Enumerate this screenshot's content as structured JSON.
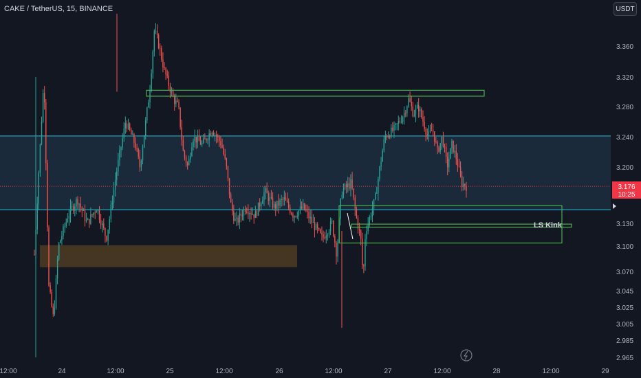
{
  "header": {
    "symbol_title": "CAKE / TetherUS, 15, BINANCE",
    "currency_button": "USDT"
  },
  "price_badge": {
    "price": "3.176",
    "countdown": "10:25"
  },
  "annotation_label": "LS Kink",
  "colors": {
    "background": "#131722",
    "up": "#26a69a",
    "down": "#ef5350",
    "zone_fill": "#1b2a3a",
    "zone_line": "#26c6da",
    "green_box": "#4caf50",
    "orange_zone": "#4a3a24",
    "price_badge": "#f23645"
  },
  "chart_data": {
    "type": "candlestick",
    "title": "CAKE / TetherUS, 15, BINANCE",
    "y_ticks": [
      "3.360",
      "3.320",
      "3.280",
      "3.240",
      "3.200",
      "3.130",
      "3.100",
      "3.070",
      "3.045",
      "3.025",
      "3.005",
      "2.985",
      "2.965"
    ],
    "x_ticks": [
      "12:00",
      "24",
      "12:00",
      "25",
      "12:00",
      "26",
      "12:00",
      "27",
      "12:00",
      "28",
      "12:00",
      "29"
    ],
    "ylim": [
      2.96,
      3.4
    ],
    "last_price": 3.176,
    "horizontal_lines": [
      3.241,
      3.147
    ],
    "zones": [
      {
        "kind": "range-channel",
        "top": 3.241,
        "bottom": 3.147
      },
      {
        "kind": "green-box",
        "top": 3.302,
        "bottom": 3.294
      },
      {
        "kind": "green-box",
        "top": 3.152,
        "bottom": 3.104
      },
      {
        "kind": "green-box",
        "top": 3.129,
        "bottom": 3.125,
        "label": "LS Kink"
      },
      {
        "kind": "orange-zone",
        "top": 3.101,
        "bottom": 3.075
      }
    ],
    "price_path": [
      [
        0,
        3.09
      ],
      [
        4,
        3.32
      ],
      [
        6,
        3.05
      ],
      [
        8,
        3.01
      ],
      [
        10,
        3.1
      ],
      [
        14,
        3.14
      ],
      [
        18,
        3.16
      ],
      [
        22,
        3.13
      ],
      [
        26,
        3.15
      ],
      [
        30,
        3.11
      ],
      [
        34,
        3.19
      ],
      [
        38,
        3.26
      ],
      [
        42,
        3.23
      ],
      [
        44,
        3.2
      ],
      [
        48,
        3.3
      ],
      [
        50,
        3.38
      ],
      [
        52,
        3.36
      ],
      [
        54,
        3.33
      ],
      [
        56,
        3.31
      ],
      [
        58,
        3.29
      ],
      [
        60,
        3.28
      ],
      [
        62,
        3.22
      ],
      [
        64,
        3.2
      ],
      [
        66,
        3.24
      ],
      [
        70,
        3.23
      ],
      [
        74,
        3.25
      ],
      [
        78,
        3.23
      ],
      [
        80,
        3.2
      ],
      [
        82,
        3.15
      ],
      [
        84,
        3.13
      ],
      [
        88,
        3.15
      ],
      [
        92,
        3.14
      ],
      [
        96,
        3.17
      ],
      [
        100,
        3.15
      ],
      [
        104,
        3.16
      ],
      [
        108,
        3.14
      ],
      [
        112,
        3.15
      ],
      [
        116,
        3.13
      ],
      [
        120,
        3.11
      ],
      [
        124,
        3.13
      ],
      [
        126,
        3.09
      ],
      [
        128,
        3.17
      ],
      [
        132,
        3.18
      ],
      [
        134,
        3.14
      ],
      [
        136,
        3.11
      ],
      [
        137,
        3.06
      ],
      [
        138,
        3.12
      ],
      [
        140,
        3.14
      ],
      [
        142,
        3.16
      ],
      [
        144,
        3.2
      ],
      [
        146,
        3.24
      ],
      [
        150,
        3.25
      ],
      [
        154,
        3.27
      ],
      [
        156,
        3.29
      ],
      [
        158,
        3.27
      ],
      [
        160,
        3.28
      ],
      [
        162,
        3.26
      ],
      [
        164,
        3.24
      ],
      [
        166,
        3.25
      ],
      [
        168,
        3.22
      ],
      [
        170,
        3.24
      ],
      [
        172,
        3.2
      ],
      [
        174,
        3.23
      ],
      [
        176,
        3.21
      ],
      [
        178,
        3.18
      ],
      [
        180,
        3.176
      ]
    ]
  }
}
